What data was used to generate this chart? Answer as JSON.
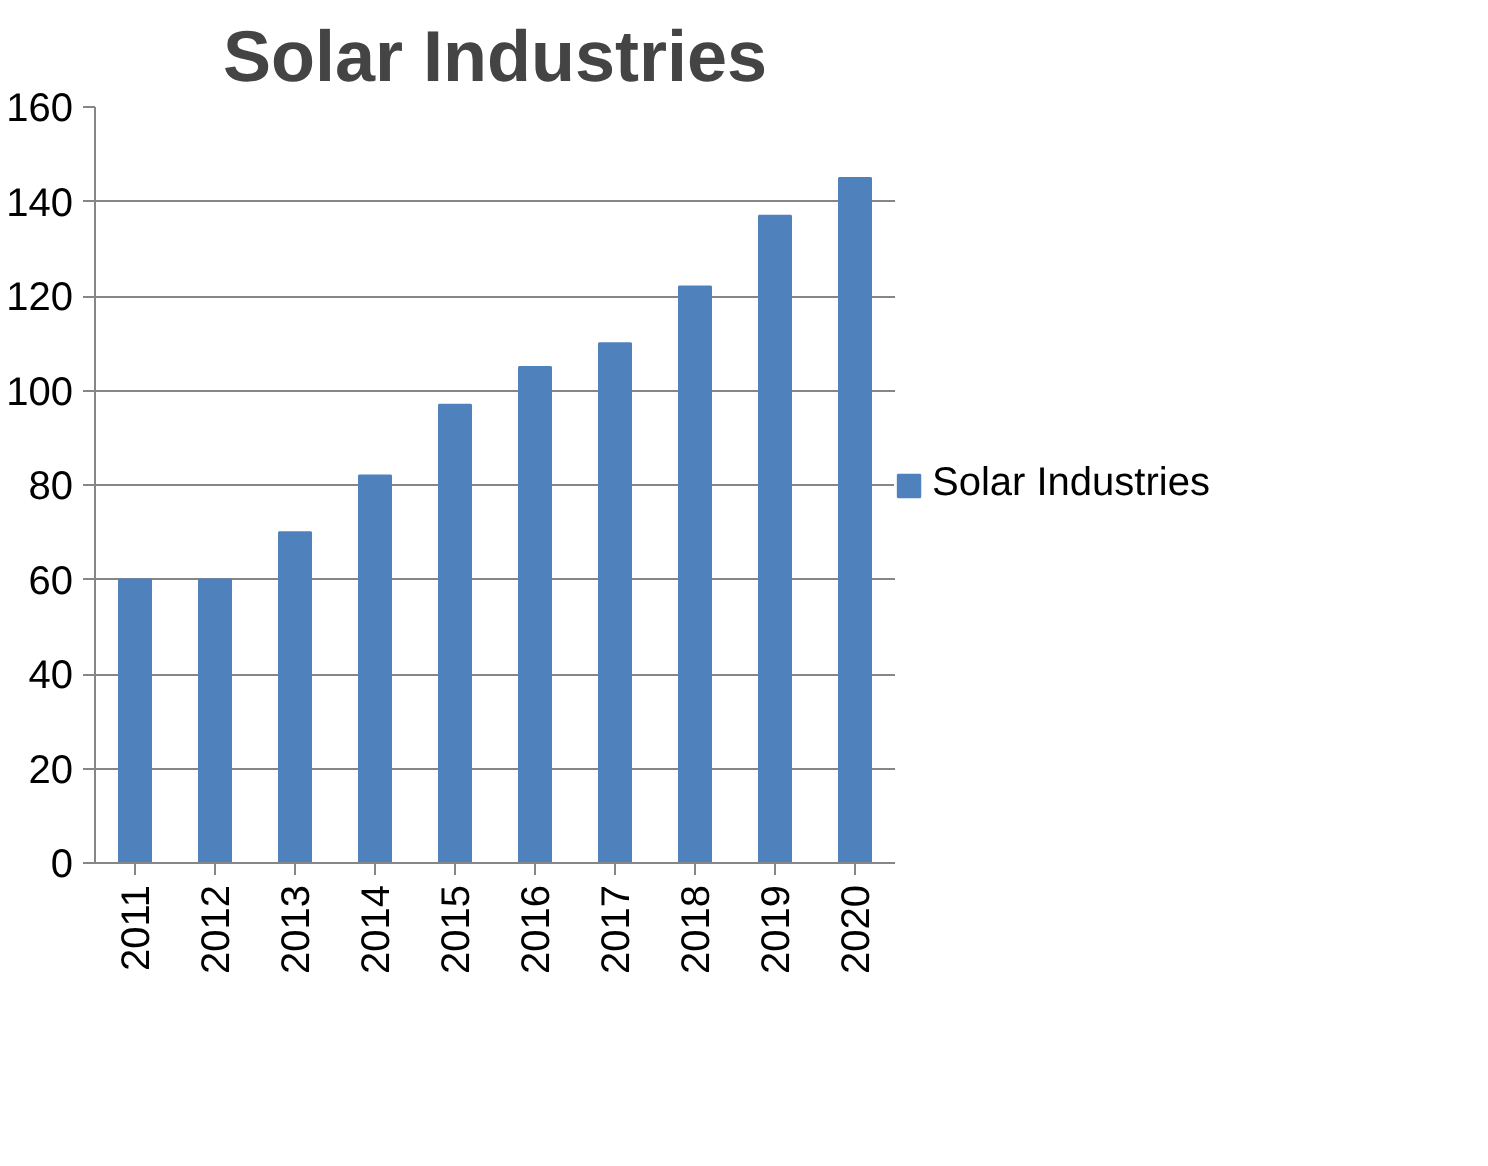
{
  "chart_data": {
    "type": "bar",
    "title": "Solar Industries",
    "categories": [
      "2011",
      "2012",
      "2013",
      "2014",
      "2015",
      "2016",
      "2017",
      "2018",
      "2019",
      "2020"
    ],
    "series": [
      {
        "name": "Solar Industries",
        "color": "#4f81bd",
        "values": [
          60,
          60,
          70,
          82,
          97,
          105,
          110,
          122,
          137,
          145
        ]
      }
    ],
    "ylim": [
      0,
      160
    ],
    "yticks": [
      0,
      20,
      40,
      60,
      80,
      100,
      120,
      140,
      160
    ],
    "grid": "y",
    "legend": "right"
  }
}
